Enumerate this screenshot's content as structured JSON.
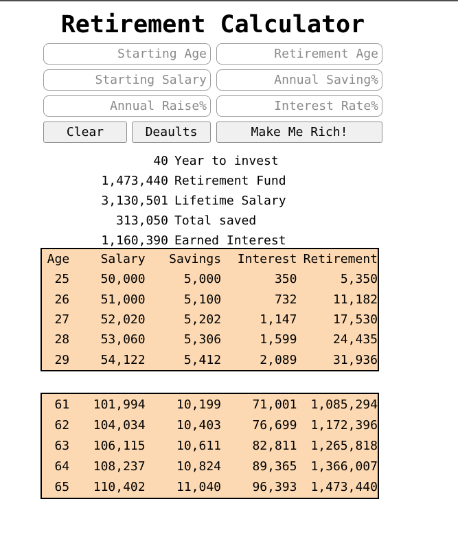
{
  "app": {
    "title": "Retirement Calculator"
  },
  "inputs": [
    {
      "name": "starting-age",
      "placeholder": "Starting Age",
      "value": ""
    },
    {
      "name": "retirement-age",
      "placeholder": "Retirement Age",
      "value": ""
    },
    {
      "name": "starting-salary",
      "placeholder": "Starting Salary",
      "value": ""
    },
    {
      "name": "annual-saving",
      "placeholder": "Annual Saving%",
      "value": ""
    },
    {
      "name": "annual-raise",
      "placeholder": "Annual Raise%",
      "value": ""
    },
    {
      "name": "interest-rate",
      "placeholder": "Interest Rate%",
      "value": ""
    }
  ],
  "buttons": {
    "clear": "Clear",
    "defaults": "Deaults",
    "make_rich": "Make Me Rich!"
  },
  "summary": [
    {
      "value": "40",
      "label": "Year to invest"
    },
    {
      "value": "1,473,440",
      "label": "Retirement Fund"
    },
    {
      "value": "3,130,501",
      "label": "Lifetime Salary"
    },
    {
      "value": "313,050",
      "label": "Total saved"
    },
    {
      "value": "1,160,390",
      "label": "Earned Interest"
    }
  ],
  "table": {
    "headers": [
      "Age",
      "Salary",
      "Savings",
      "Interest",
      "Retirement"
    ],
    "early_rows": [
      [
        "25",
        "50,000",
        "5,000",
        "350",
        "5,350"
      ],
      [
        "26",
        "51,000",
        "5,100",
        "732",
        "11,182"
      ],
      [
        "27",
        "52,020",
        "5,202",
        "1,147",
        "17,530"
      ],
      [
        "28",
        "53,060",
        "5,306",
        "1,599",
        "24,435"
      ],
      [
        "29",
        "54,122",
        "5,412",
        "2,089",
        "31,936"
      ]
    ],
    "late_rows": [
      [
        "61",
        "101,994",
        "10,199",
        "71,001",
        "1,085,294"
      ],
      [
        "62",
        "104,034",
        "10,403",
        "76,699",
        "1,172,396"
      ],
      [
        "63",
        "106,115",
        "10,611",
        "82,811",
        "1,265,818"
      ],
      [
        "64",
        "108,237",
        "10,824",
        "89,365",
        "1,366,007"
      ],
      [
        "65",
        "110,402",
        "11,040",
        "96,393",
        "1,473,440"
      ]
    ]
  },
  "colors": {
    "table_bg": "#fcd9b3",
    "table_border": "#000000",
    "placeholder_color": "#8a8a8a",
    "button_bg": "#f0f0f0",
    "top_border": "#4d4d4d"
  }
}
